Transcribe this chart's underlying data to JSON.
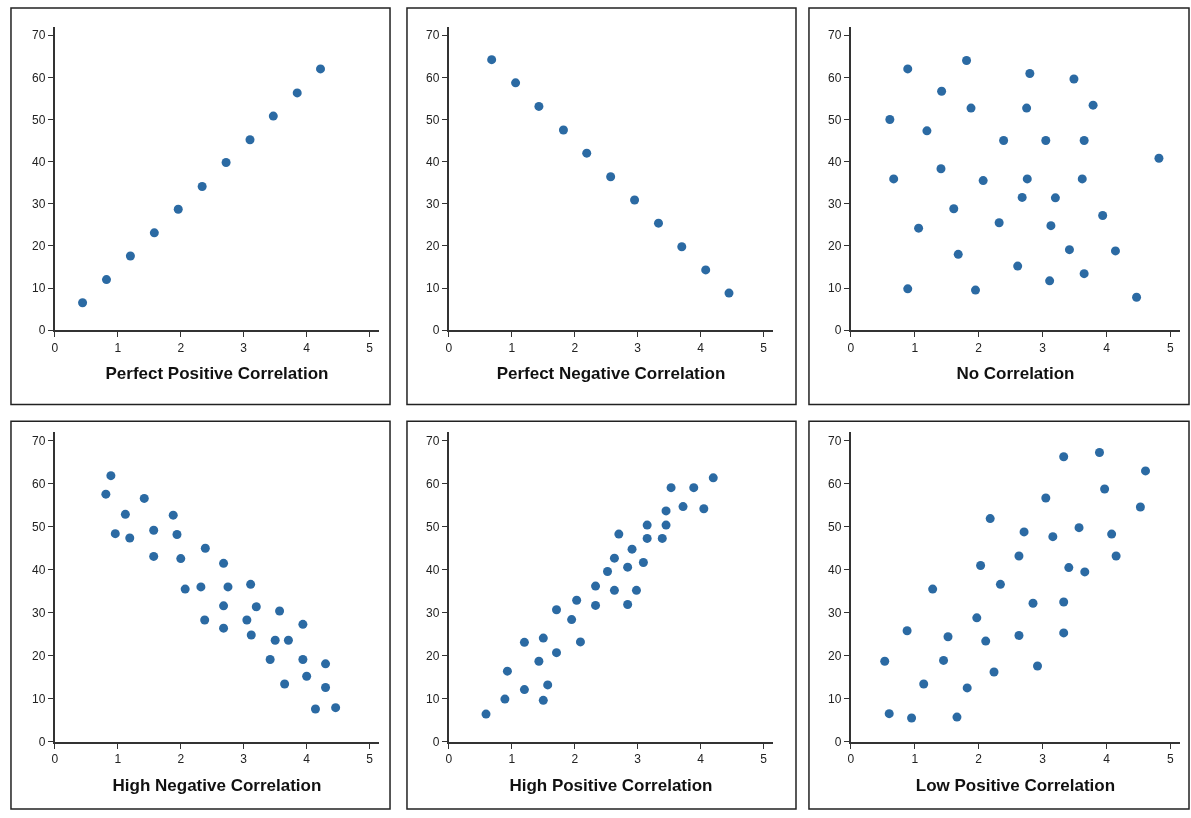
{
  "chart_data": [
    {
      "type": "scatter",
      "xlabel": "Perfect Positive Correlation",
      "color": "#2b6aa3",
      "marker": "circle",
      "grid": false,
      "xlim": [
        0,
        5.15
      ],
      "ylim": [
        0,
        72
      ],
      "xticks": [
        0,
        1,
        2,
        3,
        4,
        5
      ],
      "yticks": [
        0,
        10,
        20,
        30,
        40,
        50,
        60,
        70
      ],
      "x": [
        0.44,
        0.82,
        1.2,
        1.58,
        1.96,
        2.34,
        2.72,
        3.1,
        3.47,
        3.85,
        4.22
      ],
      "values": [
        6.5,
        12,
        17.6,
        23.1,
        28.7,
        34.1,
        39.8,
        45.2,
        50.8,
        56.3,
        62
      ]
    },
    {
      "type": "scatter",
      "xlabel": "Perfect Negative Correlation",
      "color": "#2b6aa3",
      "marker": "circle",
      "grid": false,
      "xlim": [
        0,
        5.15
      ],
      "ylim": [
        0,
        72
      ],
      "xticks": [
        0,
        1,
        2,
        3,
        4,
        5
      ],
      "yticks": [
        0,
        10,
        20,
        30,
        40,
        50,
        60,
        70
      ],
      "x": [
        0.68,
        1.06,
        1.43,
        1.82,
        2.19,
        2.57,
        2.95,
        3.33,
        3.7,
        4.08,
        4.45
      ],
      "values": [
        64.2,
        58.7,
        53.1,
        47.5,
        42,
        36.4,
        30.9,
        25.4,
        19.8,
        14.3,
        8.8
      ]
    },
    {
      "type": "scatter",
      "xlabel": "No Correlation",
      "color": "#2b6aa3",
      "marker": "circle",
      "grid": false,
      "xlim": [
        0,
        5.15
      ],
      "ylim": [
        0,
        72
      ],
      "xticks": [
        0,
        1,
        2,
        3,
        4,
        5
      ],
      "yticks": [
        0,
        10,
        20,
        30,
        40,
        50,
        60,
        70
      ],
      "x": [
        0.89,
        1.81,
        2.8,
        3.49,
        1.42,
        1.88,
        2.75,
        3.79,
        0.61,
        1.19,
        2.39,
        3.05,
        3.65,
        4.82,
        1.41,
        0.67,
        2.07,
        2.76,
        3.62,
        2.68,
        3.2,
        1.61,
        3.94,
        1.06,
        2.32,
        3.13,
        1.68,
        3.42,
        4.14,
        2.61,
        3.65,
        0.89,
        1.95,
        3.11,
        4.47
      ],
      "values": [
        62,
        64,
        60.9,
        59.6,
        56.7,
        52.7,
        52.7,
        53.4,
        50,
        47.3,
        45,
        45,
        45,
        40.8,
        38.3,
        35.9,
        35.5,
        35.9,
        35.9,
        31.5,
        31.4,
        28.8,
        27.2,
        24.2,
        25.5,
        24.8,
        18,
        19.1,
        18.8,
        15.2,
        13.4,
        9.8,
        9.5,
        11.7,
        7.8
      ]
    },
    {
      "type": "scatter",
      "xlabel": "High Negative Correlation",
      "color": "#2b6aa3",
      "marker": "circle",
      "grid": false,
      "xlim": [
        0,
        5.15
      ],
      "ylim": [
        0,
        72
      ],
      "xticks": [
        0,
        1,
        2,
        3,
        4,
        5
      ],
      "yticks": [
        0,
        10,
        20,
        30,
        40,
        50,
        60,
        70
      ],
      "x": [
        0.89,
        0.81,
        1.42,
        1.12,
        1.88,
        0.96,
        1.19,
        1.57,
        1.94,
        2.39,
        1.57,
        2.0,
        2.68,
        2.07,
        2.32,
        2.75,
        3.11,
        2.68,
        3.2,
        3.57,
        2.38,
        3.05,
        2.68,
        3.12,
        3.94,
        3.5,
        3.71,
        3.42,
        3.94,
        4.3,
        4.0,
        3.65,
        4.3,
        4.14,
        4.46
      ],
      "values": [
        61.9,
        57.6,
        56.6,
        52.9,
        52.7,
        48.4,
        47.4,
        49.2,
        48.2,
        45,
        43.1,
        42.6,
        41.5,
        35.5,
        36,
        36,
        36.6,
        31.6,
        31.4,
        30.4,
        28.3,
        28.3,
        26.4,
        24.8,
        27.3,
        23.6,
        23.6,
        19.1,
        19.1,
        18.1,
        15.2,
        13.4,
        12.6,
        7.6,
        7.9
      ]
    },
    {
      "type": "scatter",
      "xlabel": "High Positive Correlation",
      "color": "#2b6aa3",
      "marker": "circle",
      "grid": false,
      "xlim": [
        0,
        5.15
      ],
      "ylim": [
        0,
        72
      ],
      "xticks": [
        0,
        1,
        2,
        3,
        4,
        5
      ],
      "yticks": [
        0,
        10,
        20,
        30,
        40,
        50,
        60,
        70
      ],
      "x": [
        0.59,
        0.89,
        0.93,
        1.2,
        1.2,
        1.5,
        1.57,
        1.43,
        1.5,
        1.71,
        1.71,
        1.95,
        2.03,
        2.09,
        2.33,
        2.33,
        2.52,
        2.63,
        2.63,
        2.7,
        2.84,
        2.84,
        2.91,
        2.98,
        3.09,
        3.15,
        3.15,
        3.39,
        3.45,
        3.45,
        3.53,
        3.72,
        3.89,
        4.05,
        4.2
      ],
      "values": [
        6.4,
        9.9,
        16.4,
        12.1,
        23.1,
        9.6,
        13.2,
        18.7,
        24.1,
        20.7,
        30.7,
        28.4,
        32.9,
        23.2,
        31.7,
        36.2,
        39.6,
        35.2,
        42.7,
        48.3,
        40.6,
        31.9,
        44.8,
        35.2,
        41.7,
        47.3,
        50.4,
        47.3,
        50.4,
        53.7,
        59.1,
        54.7,
        59.1,
        54.2,
        61.4
      ]
    },
    {
      "type": "scatter",
      "xlabel": "Low Positive Correlation",
      "color": "#2b6aa3",
      "marker": "circle",
      "grid": false,
      "xlim": [
        0,
        5.15
      ],
      "ylim": [
        0,
        72
      ],
      "xticks": [
        0,
        1,
        2,
        3,
        4,
        5
      ],
      "yticks": [
        0,
        10,
        20,
        30,
        40,
        50,
        60,
        70
      ],
      "x": [
        0.53,
        0.6,
        0.88,
        0.95,
        1.14,
        1.28,
        1.45,
        1.52,
        1.66,
        1.82,
        1.97,
        2.03,
        2.11,
        2.18,
        2.24,
        2.34,
        2.63,
        2.63,
        2.71,
        2.85,
        2.92,
        3.05,
        3.16,
        3.33,
        3.33,
        3.33,
        3.41,
        3.57,
        3.66,
        3.89,
        3.97,
        4.08,
        4.15,
        4.53,
        4.61
      ],
      "values": [
        18.7,
        6.5,
        25.8,
        5.5,
        13.4,
        35.5,
        18.9,
        24.4,
        5.7,
        12.5,
        28.8,
        41,
        23.4,
        51.9,
        16.2,
        36.6,
        43.2,
        24.7,
        48.8,
        32.2,
        17.6,
        56.7,
        47.7,
        66.3,
        32.5,
        25.3,
        40.5,
        49.8,
        39.5,
        67.3,
        58.8,
        48.3,
        43.2,
        54.6,
        63
      ]
    }
  ]
}
